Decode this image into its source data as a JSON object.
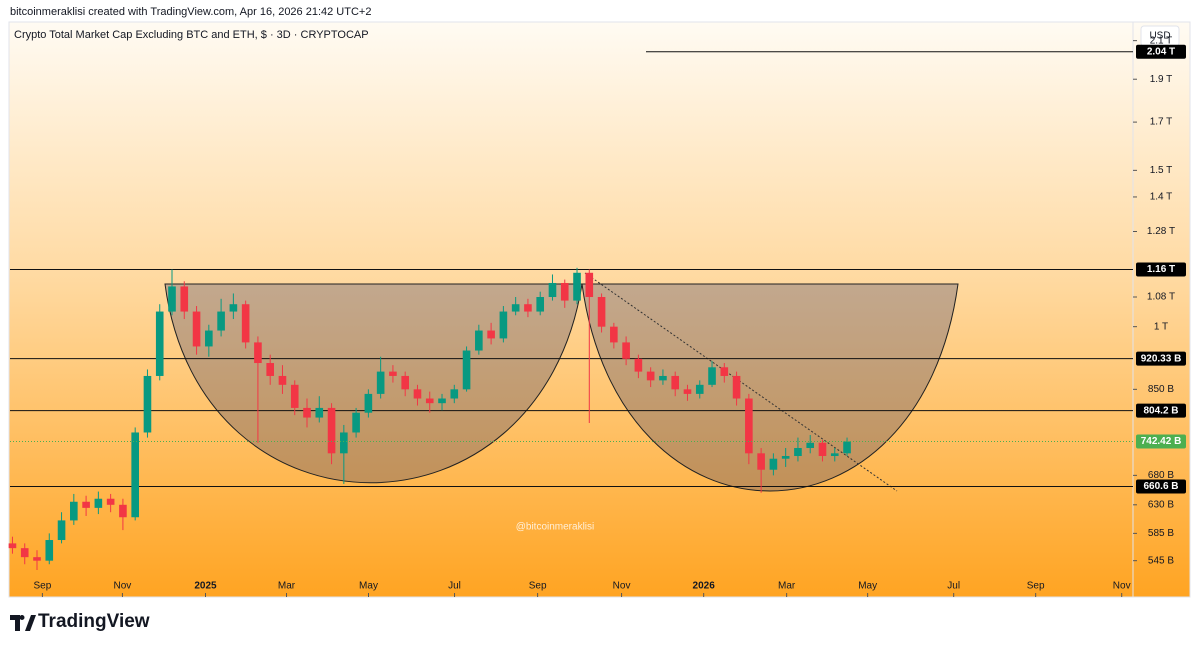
{
  "header": "bitcoinmeraklisi created with TradingView.com, Apr 16, 2026 21:42 UTC+2",
  "currency": "USD",
  "watermark": "@bitcoinmeraklisi",
  "brand": "TradingView",
  "chart_data": {
    "type": "candlestick",
    "title": "Crypto Total Market Cap Excluding BTC and ETH, $ · 3D · CRYPTOCAP",
    "log_scale": true,
    "up_color": "#089981",
    "down_color": "#f23645",
    "open": [
      570,
      563,
      550,
      545,
      575,
      605,
      635,
      625,
      640,
      630,
      610,
      760,
      880,
      1040,
      1110,
      1040,
      950,
      990,
      1040,
      1060,
      960,
      910,
      880,
      860,
      810,
      790,
      810,
      720,
      760,
      800,
      840,
      890,
      880,
      850,
      830,
      820,
      830,
      850,
      940,
      990,
      970,
      1040,
      1060,
      1040,
      1080,
      1120,
      1070,
      1150,
      1080,
      1000,
      960,
      920,
      890,
      870,
      880,
      850,
      840,
      860,
      900,
      880,
      830,
      720,
      690,
      710,
      715,
      730,
      740,
      715,
      720
    ],
    "high": [
      580,
      570,
      560,
      585,
      618,
      648,
      645,
      652,
      648,
      640,
      770,
      895,
      1060,
      1160,
      1125,
      1055,
      1005,
      1075,
      1090,
      1070,
      975,
      930,
      905,
      870,
      830,
      835,
      820,
      775,
      810,
      850,
      925,
      905,
      890,
      860,
      845,
      840,
      860,
      950,
      1005,
      1010,
      1055,
      1080,
      1075,
      1095,
      1145,
      1130,
      1165,
      1160,
      1090,
      1010,
      975,
      930,
      900,
      895,
      890,
      860,
      870,
      915,
      910,
      890,
      840,
      730,
      720,
      730,
      750,
      755,
      745,
      730,
      750
    ],
    "low": [
      555,
      540,
      532,
      540,
      570,
      598,
      612,
      615,
      618,
      590,
      605,
      750,
      870,
      1030,
      1020,
      930,
      925,
      975,
      1020,
      945,
      740,
      860,
      840,
      795,
      770,
      780,
      700,
      665,
      750,
      790,
      830,
      865,
      835,
      815,
      800,
      805,
      820,
      845,
      930,
      955,
      960,
      1030,
      1025,
      1030,
      1070,
      1050,
      1060,
      779,
      985,
      945,
      905,
      875,
      855,
      860,
      835,
      825,
      830,
      855,
      865,
      815,
      700,
      650,
      680,
      695,
      705,
      720,
      705,
      705,
      715
    ],
    "close": [
      563,
      550,
      545,
      575,
      605,
      635,
      625,
      640,
      630,
      610,
      760,
      880,
      1040,
      1110,
      1040,
      950,
      990,
      1040,
      1060,
      960,
      910,
      880,
      860,
      810,
      790,
      810,
      720,
      760,
      800,
      840,
      890,
      880,
      850,
      830,
      820,
      830,
      850,
      940,
      990,
      970,
      1040,
      1060,
      1040,
      1080,
      1120,
      1070,
      1150,
      1080,
      1000,
      960,
      920,
      890,
      870,
      880,
      850,
      840,
      860,
      900,
      880,
      830,
      720,
      690,
      710,
      715,
      730,
      740,
      715,
      720,
      742.42
    ],
    "xlim": [
      -0.2,
      91.3
    ],
    "xticks": [
      {
        "value": 2.44,
        "label": "Sep"
      },
      {
        "value": 8.96,
        "label": "Nov"
      },
      {
        "value": 15.73,
        "label": "2025"
      },
      {
        "value": 22.33,
        "label": "Mar"
      },
      {
        "value": 29.01,
        "label": "May"
      },
      {
        "value": 36.02,
        "label": "Jul"
      },
      {
        "value": 42.79,
        "label": "Sep"
      },
      {
        "value": 49.63,
        "label": "Nov"
      },
      {
        "value": 56.32,
        "label": "2026"
      },
      {
        "value": 63.08,
        "label": "Mar"
      },
      {
        "value": 69.68,
        "label": "May"
      },
      {
        "value": 76.69,
        "label": "Jul"
      },
      {
        "value": 83.37,
        "label": "Sep"
      },
      {
        "value": 90.38,
        "label": "Nov"
      }
    ],
    "ylim": [
      496,
      2204
    ],
    "yticks": [
      {
        "value": 545,
        "label": "545 B"
      },
      {
        "value": 585,
        "label": "585 B"
      },
      {
        "value": 630,
        "label": "630 B"
      },
      {
        "value": 680,
        "label": "680 B"
      },
      {
        "value": 850,
        "label": "850 B"
      },
      {
        "value": 1000,
        "label": "1 T"
      },
      {
        "value": 1080,
        "label": "1.08 T"
      },
      {
        "value": 1280,
        "label": "1.28 T"
      },
      {
        "value": 1400,
        "label": "1.4 T"
      },
      {
        "value": 1500,
        "label": "1.5 T"
      },
      {
        "value": 1700,
        "label": "1.7 T"
      },
      {
        "value": 1900,
        "label": "1.9 T"
      },
      {
        "value": 2100,
        "label": "2.1 T"
      }
    ],
    "levels": [
      {
        "value": 2040,
        "label": "2.04 T"
      },
      {
        "value": 1160,
        "label": "1.16 T"
      },
      {
        "value": 920.33,
        "label": "920.33 B"
      },
      {
        "value": 804.2,
        "label": "804.2 B"
      },
      {
        "value": 660.6,
        "label": "660.6 B"
      }
    ],
    "last": {
      "value": 742.42,
      "label": "742.42 B",
      "color": "#4caf50"
    }
  }
}
